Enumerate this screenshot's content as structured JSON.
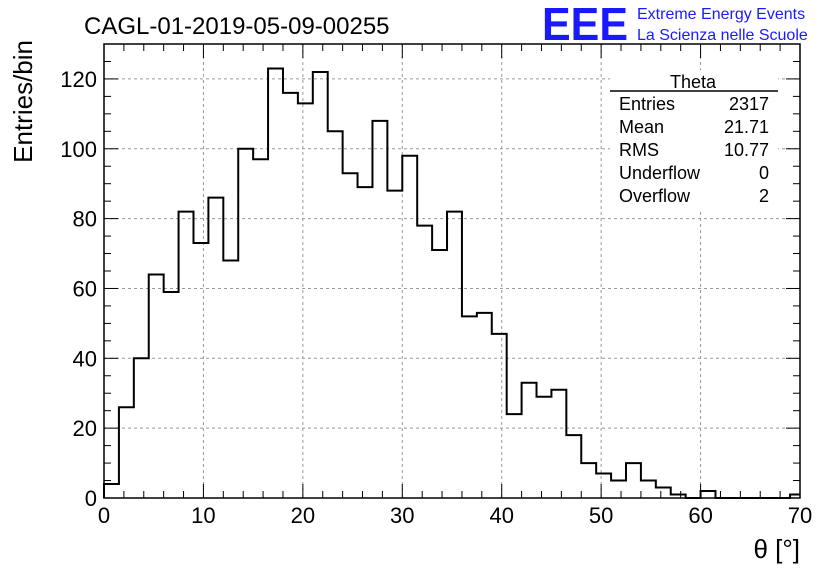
{
  "chart_data": {
    "type": "bar",
    "title": "CAGL-01-2019-05-09-00255",
    "xlabel": "θ [°]",
    "ylabel": "Entries/bin",
    "xlim": [
      0,
      70
    ],
    "ylim": [
      0,
      130
    ],
    "bin_width": 1.5,
    "x_ticks": [
      0,
      10,
      20,
      30,
      40,
      50,
      60,
      70
    ],
    "y_ticks": [
      0,
      20,
      40,
      60,
      80,
      100,
      120
    ],
    "grid": true,
    "values": [
      4,
      26,
      40,
      64,
      59,
      82,
      73,
      86,
      68,
      100,
      97,
      123,
      116,
      113,
      122,
      105,
      93,
      89,
      108,
      88,
      98,
      78,
      71,
      82,
      52,
      53,
      47,
      24,
      33,
      29,
      31,
      18,
      10,
      7,
      5,
      10,
      5,
      3,
      1,
      0,
      2,
      0,
      0,
      0,
      0,
      0,
      1
    ],
    "stats_box": {
      "name": "Theta",
      "rows": [
        {
          "label": "Entries",
          "value": "2317"
        },
        {
          "label": "Mean",
          "value": "21.71"
        },
        {
          "label": "RMS",
          "value": "10.77"
        },
        {
          "label": "Underflow",
          "value": "0"
        },
        {
          "label": "Overflow",
          "value": "2"
        }
      ]
    },
    "logo": {
      "mark": "EEE",
      "line1": "Extreme Energy Events",
      "line2": "La Scienza nelle Scuole",
      "color": "#1a1aff"
    }
  }
}
